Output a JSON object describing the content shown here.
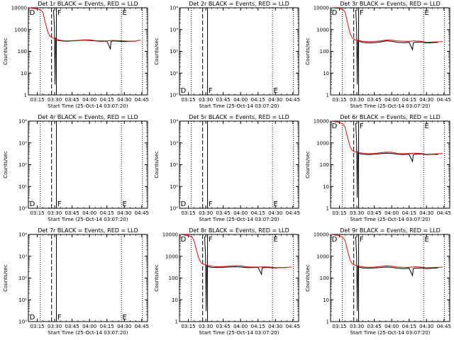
{
  "common": {
    "xticks": [
      "03:15",
      "03:30",
      "03:45",
      "04:00",
      "04:15",
      "04:30",
      "04:45"
    ],
    "xtick_minutes": [
      15,
      30,
      45,
      60,
      75,
      90,
      105
    ],
    "xlim_minutes": [
      7.33,
      110
    ],
    "xlabel": "Start Time (25-Oct-14 03:07:20)",
    "ylabel": "Counts/sec",
    "ylim": [
      1,
      10000
    ],
    "ytick_values": [
      1,
      10,
      100,
      1000,
      10000
    ],
    "yticks_normal": [
      "1",
      "10",
      "100",
      "1000",
      "10000"
    ],
    "yticks_empty": [
      "10⁰",
      "10¹",
      "10²",
      "10³",
      "10⁴"
    ],
    "vlines": [
      {
        "minute": 17.5,
        "style": "dotted"
      },
      {
        "minute": 27.3,
        "style": "dashed"
      },
      {
        "minute": 31.5,
        "style": "solid"
      },
      {
        "minute": 87.5,
        "style": "dotted"
      },
      {
        "minute": 105.5,
        "style": "dotted"
      }
    ],
    "segment_markers": [
      {
        "minute": 8.3,
        "text": "D"
      },
      {
        "minute": 32.3,
        "text": "F"
      },
      {
        "minute": 88.3,
        "text": "E"
      }
    ],
    "series_colors": {
      "events": "#000000",
      "lld": "#ff0000"
    }
  },
  "chart_data": [
    {
      "type": "line",
      "title": "Det 1r BLACK = Events, RED = LLD",
      "has_data": true,
      "series": [
        {
          "name": "Events",
          "color": "#000000",
          "points": [
            [
              29,
              8000
            ],
            [
              29.8,
              1200
            ],
            [
              30.3,
              3
            ],
            [
              30.8,
              400
            ],
            [
              31.5,
              350
            ],
            [
              33,
              320
            ],
            [
              36,
              300
            ],
            [
              40,
              290
            ],
            [
              45,
              300
            ],
            [
              50,
              310
            ],
            [
              55,
              330
            ],
            [
              60,
              320
            ],
            [
              65,
              300
            ],
            [
              70,
              290
            ],
            [
              75,
              295
            ],
            [
              78,
              130
            ],
            [
              78.5,
              280
            ],
            [
              80,
              300
            ],
            [
              85,
              290
            ],
            [
              90,
              280
            ],
            [
              95,
              290
            ],
            [
              100,
              295
            ]
          ]
        },
        {
          "name": "LLD",
          "color": "#ff0000",
          "points": [
            [
              8,
              10000
            ],
            [
              14,
              9000
            ],
            [
              18,
              8000
            ],
            [
              20,
              6000
            ],
            [
              22,
              2000
            ],
            [
              24,
              800
            ],
            [
              26,
              500
            ],
            [
              28,
              420
            ],
            [
              30,
              380
            ],
            [
              31,
              360
            ],
            [
              35,
              320
            ],
            [
              40,
              300
            ],
            [
              45,
              310
            ],
            [
              50,
              320
            ],
            [
              55,
              340
            ],
            [
              60,
              340
            ],
            [
              65,
              310
            ],
            [
              70,
              300
            ],
            [
              75,
              300
            ],
            [
              80,
              320
            ],
            [
              85,
              310
            ],
            [
              90,
              300
            ],
            [
              95,
              290
            ],
            [
              100,
              300
            ],
            [
              104,
              330
            ]
          ]
        }
      ]
    },
    {
      "type": "line",
      "title": "Det 2r BLACK = Events, RED = LLD",
      "has_data": false,
      "series": []
    },
    {
      "type": "line",
      "title": "Det 3r BLACK = Events, RED = LLD",
      "has_data": true,
      "series": [
        {
          "name": "Events",
          "color": "#000000",
          "points": [
            [
              29,
              8000
            ],
            [
              29.8,
              1000
            ],
            [
              30.3,
              3
            ],
            [
              30.8,
              330
            ],
            [
              31.5,
              300
            ],
            [
              35,
              260
            ],
            [
              40,
              240
            ],
            [
              45,
              250
            ],
            [
              50,
              270
            ],
            [
              55,
              300
            ],
            [
              60,
              290
            ],
            [
              65,
              260
            ],
            [
              70,
              250
            ],
            [
              75,
              260
            ],
            [
              78,
              120
            ],
            [
              78.5,
              240
            ],
            [
              80,
              260
            ],
            [
              85,
              270
            ],
            [
              90,
              240
            ],
            [
              95,
              250
            ],
            [
              100,
              260
            ]
          ]
        },
        {
          "name": "LLD",
          "color": "#ff0000",
          "points": [
            [
              8,
              10000
            ],
            [
              14,
              9500
            ],
            [
              18,
              8500
            ],
            [
              20,
              6000
            ],
            [
              22,
              2000
            ],
            [
              24,
              700
            ],
            [
              26,
              420
            ],
            [
              28,
              350
            ],
            [
              30,
              320
            ],
            [
              35,
              290
            ],
            [
              40,
              280
            ],
            [
              45,
              285
            ],
            [
              50,
              300
            ],
            [
              55,
              330
            ],
            [
              60,
              330
            ],
            [
              65,
              300
            ],
            [
              70,
              290
            ],
            [
              75,
              290
            ],
            [
              80,
              300
            ],
            [
              85,
              290
            ],
            [
              90,
              260
            ],
            [
              95,
              270
            ],
            [
              100,
              275
            ],
            [
              104,
              280
            ]
          ]
        }
      ]
    },
    {
      "type": "line",
      "title": "Det 4r BLACK = Events, RED = LLD",
      "has_data": false,
      "series": []
    },
    {
      "type": "line",
      "title": "Det 5r BLACK = Events, RED = LLD",
      "has_data": false,
      "series": []
    },
    {
      "type": "line",
      "title": "Det 6r BLACK = Events, RED = LLD",
      "has_data": true,
      "series": [
        {
          "name": "Events",
          "color": "#000000",
          "points": [
            [
              29,
              8000
            ],
            [
              29.8,
              900
            ],
            [
              30.3,
              3
            ],
            [
              30.8,
              380
            ],
            [
              31.5,
              330
            ],
            [
              35,
              300
            ],
            [
              40,
              290
            ],
            [
              45,
              300
            ],
            [
              50,
              320
            ],
            [
              55,
              340
            ],
            [
              60,
              330
            ],
            [
              65,
              300
            ],
            [
              70,
              290
            ],
            [
              75,
              300
            ],
            [
              78,
              140
            ],
            [
              78.5,
              280
            ],
            [
              80,
              300
            ],
            [
              85,
              310
            ],
            [
              90,
              290
            ],
            [
              95,
              300
            ],
            [
              100,
              290
            ]
          ]
        },
        {
          "name": "LLD",
          "color": "#ff0000",
          "points": [
            [
              8,
              10000
            ],
            [
              14,
              9000
            ],
            [
              18,
              7500
            ],
            [
              20,
              5000
            ],
            [
              22,
              1800
            ],
            [
              24,
              700
            ],
            [
              26,
              450
            ],
            [
              28,
              400
            ],
            [
              30,
              370
            ],
            [
              35,
              340
            ],
            [
              40,
              320
            ],
            [
              45,
              330
            ],
            [
              50,
              350
            ],
            [
              55,
              380
            ],
            [
              60,
              370
            ],
            [
              65,
              330
            ],
            [
              70,
              320
            ],
            [
              75,
              330
            ],
            [
              80,
              340
            ],
            [
              85,
              330
            ],
            [
              90,
              300
            ],
            [
              95,
              310
            ],
            [
              100,
              320
            ],
            [
              104,
              330
            ]
          ]
        }
      ]
    },
    {
      "type": "line",
      "title": "Det 7r BLACK = Events, RED = LLD",
      "has_data": false,
      "series": []
    },
    {
      "type": "line",
      "title": "Det 8r BLACK = Events, RED = LLD",
      "has_data": true,
      "series": [
        {
          "name": "Events",
          "color": "#000000",
          "points": [
            [
              29,
              8000
            ],
            [
              29.8,
              900
            ],
            [
              30.3,
              3
            ],
            [
              30.8,
              400
            ],
            [
              31.5,
              340
            ],
            [
              35,
              310
            ],
            [
              40,
              300
            ],
            [
              45,
              310
            ],
            [
              50,
              320
            ],
            [
              55,
              330
            ],
            [
              60,
              320
            ],
            [
              65,
              300
            ],
            [
              70,
              300
            ],
            [
              75,
              310
            ],
            [
              78,
              150
            ],
            [
              78.5,
              290
            ],
            [
              80,
              300
            ],
            [
              85,
              300
            ],
            [
              90,
              290
            ],
            [
              95,
              300
            ],
            [
              100,
              300
            ]
          ]
        },
        {
          "name": "LLD",
          "color": "#ff0000",
          "points": [
            [
              8,
              10000
            ],
            [
              14,
              9000
            ],
            [
              18,
              8000
            ],
            [
              20,
              5000
            ],
            [
              22,
              1900
            ],
            [
              24,
              800
            ],
            [
              26,
              500
            ],
            [
              28,
              430
            ],
            [
              30,
              400
            ],
            [
              35,
              350
            ],
            [
              40,
              330
            ],
            [
              45,
              340
            ],
            [
              50,
              350
            ],
            [
              55,
              370
            ],
            [
              60,
              360
            ],
            [
              65,
              330
            ],
            [
              70,
              320
            ],
            [
              75,
              320
            ],
            [
              80,
              330
            ],
            [
              85,
              320
            ],
            [
              90,
              300
            ],
            [
              95,
              300
            ],
            [
              100,
              310
            ],
            [
              104,
              320
            ]
          ]
        }
      ]
    },
    {
      "type": "line",
      "title": "Det 9r BLACK = Events, RED = LLD",
      "has_data": true,
      "series": [
        {
          "name": "Events",
          "color": "#000000",
          "points": [
            [
              29,
              8000
            ],
            [
              29.8,
              900
            ],
            [
              30.3,
              3
            ],
            [
              30.8,
              380
            ],
            [
              31.5,
              320
            ],
            [
              35,
              290
            ],
            [
              40,
              280
            ],
            [
              45,
              290
            ],
            [
              50,
              300
            ],
            [
              55,
              320
            ],
            [
              60,
              310
            ],
            [
              65,
              280
            ],
            [
              70,
              270
            ],
            [
              75,
              280
            ],
            [
              78,
              130
            ],
            [
              78.5,
              270
            ],
            [
              80,
              280
            ],
            [
              85,
              290
            ],
            [
              90,
              270
            ],
            [
              95,
              280
            ],
            [
              100,
              290
            ]
          ]
        },
        {
          "name": "LLD",
          "color": "#ff0000",
          "points": [
            [
              8,
              10000
            ],
            [
              14,
              9000
            ],
            [
              18,
              7500
            ],
            [
              20,
              5000
            ],
            [
              22,
              1800
            ],
            [
              24,
              700
            ],
            [
              26,
              450
            ],
            [
              28,
              400
            ],
            [
              30,
              360
            ],
            [
              35,
              330
            ],
            [
              40,
              310
            ],
            [
              45,
              320
            ],
            [
              50,
              340
            ],
            [
              55,
              360
            ],
            [
              60,
              350
            ],
            [
              65,
              320
            ],
            [
              70,
              310
            ],
            [
              75,
              310
            ],
            [
              80,
              330
            ],
            [
              85,
              320
            ],
            [
              90,
              300
            ],
            [
              95,
              300
            ],
            [
              100,
              310
            ],
            [
              104,
              320
            ]
          ]
        }
      ]
    }
  ]
}
